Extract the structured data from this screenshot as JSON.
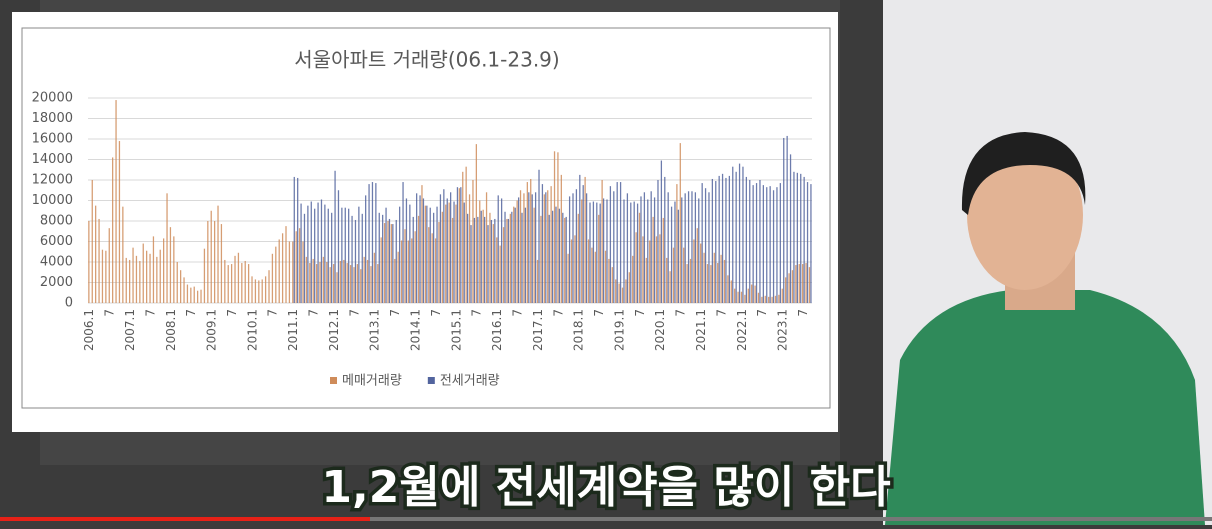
{
  "chart_data": {
    "type": "bar",
    "title": "서울아파트 거래량(06.1-23.9)",
    "categories": [
      "2006.1",
      null,
      null,
      null,
      null,
      null,
      "7",
      null,
      null,
      null,
      null,
      null,
      "2007.1",
      null,
      null,
      null,
      null,
      null,
      "7",
      null,
      null,
      null,
      null,
      null,
      "2008.1",
      null,
      null,
      null,
      null,
      null,
      "7",
      null,
      null,
      null,
      null,
      null,
      "2009.1",
      null,
      null,
      null,
      null,
      null,
      "7",
      null,
      null,
      null,
      null,
      null,
      "2010.1",
      null,
      null,
      null,
      null,
      null,
      "7",
      null,
      null,
      null,
      null,
      null,
      "2011.1",
      null,
      null,
      null,
      null,
      null,
      "7",
      null,
      null,
      null,
      null,
      null,
      "2012.1",
      null,
      null,
      null,
      null,
      null,
      "7",
      null,
      null,
      null,
      null,
      null,
      "2013.1",
      null,
      null,
      null,
      null,
      null,
      "7",
      null,
      null,
      null,
      null,
      null,
      "2014.1",
      null,
      null,
      null,
      null,
      null,
      "7",
      null,
      null,
      null,
      null,
      null,
      "2015.1",
      null,
      null,
      null,
      null,
      null,
      "7",
      null,
      null,
      null,
      null,
      null,
      "2016.1",
      null,
      null,
      null,
      null,
      null,
      "7",
      null,
      null,
      null,
      null,
      null,
      "2017.1",
      null,
      null,
      null,
      null,
      null,
      "7",
      null,
      null,
      null,
      null,
      null,
      "2018.1",
      null,
      null,
      null,
      null,
      null,
      "7",
      null,
      null,
      null,
      null,
      null,
      "2019.1",
      null,
      null,
      null,
      null,
      null,
      "7",
      null,
      null,
      null,
      null,
      null,
      "2020.1",
      null,
      null,
      null,
      null,
      null,
      "7",
      null,
      null,
      null,
      null,
      null,
      "2021.1",
      null,
      null,
      null,
      null,
      null,
      "7",
      null,
      null,
      null,
      null,
      null,
      "2022.1",
      null,
      null,
      null,
      null,
      null,
      "7",
      null,
      null,
      null,
      null,
      null,
      "2023.1",
      null,
      null,
      null,
      null,
      null,
      "7",
      null,
      null
    ],
    "series": [
      {
        "name": "메매거래량",
        "color": "#cf8c5a",
        "values": [
          8000,
          12000,
          9500,
          8200,
          5200,
          5100,
          7300,
          14200,
          19800,
          15800,
          9400,
          4400,
          4200,
          5400,
          4600,
          4100,
          5800,
          5100,
          4800,
          6500,
          4500,
          5200,
          6300,
          10700,
          7400,
          6500,
          4000,
          3200,
          2500,
          1800,
          1500,
          1600,
          1200,
          1300,
          5300,
          8000,
          9000,
          8000,
          9500,
          7700,
          4200,
          3700,
          3800,
          4600,
          4900,
          3900,
          4100,
          3800,
          2600,
          2300,
          2200,
          2300,
          2600,
          3200,
          4800,
          5500,
          6200,
          6800,
          7500,
          6000,
          6000,
          7000,
          7300,
          6000,
          4500,
          3900,
          4300,
          3800,
          4000,
          4500,
          4000,
          3500,
          3800,
          3000,
          4100,
          4200,
          3900,
          3700,
          3500,
          3800,
          3300,
          4500,
          4200,
          3600,
          4900,
          3800,
          6400,
          7800,
          8000,
          7700,
          4300,
          5000,
          6100,
          7200,
          6100,
          6300,
          7000,
          8500,
          11500,
          9500,
          7400,
          6800,
          6300,
          7900,
          8900,
          9600,
          9800,
          8300,
          9600,
          11200,
          12800,
          13300,
          10600,
          12000,
          15500,
          10000,
          9100,
          10800,
          8800,
          7700,
          6400,
          5600,
          7400,
          8200,
          8700,
          9400,
          10000,
          11000,
          10700,
          11800,
          12100,
          9300,
          4200,
          8500,
          10600,
          11000,
          11400,
          14800,
          14700,
          12500,
          8300,
          4800,
          6200,
          6600,
          8700,
          10100,
          12300,
          6200,
          5400,
          5000,
          8600,
          12000,
          5100,
          4300,
          3500,
          2300,
          1900,
          1500,
          2300,
          3000,
          4600,
          6900,
          8800,
          6500,
          4400,
          6100,
          8400,
          6500,
          6700,
          8300,
          4400,
          3100,
          5400,
          11600,
          15600,
          5400,
          3800,
          4300,
          6200,
          7300,
          5800,
          4900,
          3800,
          3700,
          4900,
          3900,
          4700,
          4200,
          2700,
          2200,
          1400,
          1100,
          1100,
          800,
          1400,
          1800,
          1700,
          1000,
          600,
          700,
          600,
          600,
          700,
          800,
          1400,
          2500,
          2900,
          3200,
          3700,
          3800,
          3800,
          3900,
          3500
        ]
      },
      {
        "name": "전세거래량",
        "color": "#52649e",
        "values": [
          null,
          null,
          null,
          null,
          null,
          null,
          null,
          null,
          null,
          null,
          null,
          null,
          null,
          null,
          null,
          null,
          null,
          null,
          null,
          null,
          null,
          null,
          null,
          null,
          null,
          null,
          null,
          null,
          null,
          null,
          null,
          null,
          null,
          null,
          null,
          null,
          null,
          null,
          null,
          null,
          null,
          null,
          null,
          null,
          null,
          null,
          null,
          null,
          null,
          null,
          null,
          null,
          null,
          null,
          null,
          null,
          null,
          null,
          null,
          null,
          12300,
          12200,
          9700,
          8700,
          9500,
          9900,
          9200,
          9800,
          10100,
          9600,
          9200,
          8800,
          12900,
          11000,
          9300,
          9300,
          9200,
          8500,
          8100,
          9400,
          8700,
          10500,
          11600,
          11800,
          11700,
          8800,
          8600,
          9300,
          8200,
          7700,
          8100,
          9400,
          11800,
          10200,
          9600,
          8400,
          10700,
          10500,
          10200,
          9500,
          9300,
          8800,
          9400,
          10600,
          11100,
          10200,
          10800,
          9900,
          11300,
          11300,
          9800,
          8700,
          7600,
          8300,
          8400,
          9000,
          8400,
          7600,
          8100,
          8200,
          10500,
          10200,
          8900,
          8200,
          8900,
          9300,
          10300,
          8800,
          9300,
          10800,
          10600,
          10800,
          13000,
          11600,
          10800,
          8600,
          9000,
          9400,
          9200,
          8800,
          8400,
          10400,
          10700,
          11100,
          12500,
          11500,
          10700,
          9800,
          9900,
          9800,
          9700,
          10200,
          10100,
          11400,
          10900,
          11800,
          11800,
          10100,
          10700,
          9800,
          9900,
          9700,
          10400,
          10800,
          10100,
          10900,
          10300,
          12000,
          13900,
          12300,
          10800,
          9400,
          9900,
          9100,
          10300,
          10700,
          10900,
          10900,
          10800,
          10200,
          11700,
          11200,
          10800,
          12100,
          11900,
          12400,
          12600,
          12200,
          12400,
          13300,
          12800,
          13600,
          13300,
          12300,
          12000,
          11500,
          11700,
          12000,
          11500,
          11300,
          11400,
          11000,
          11300,
          11700,
          16100,
          16300,
          14500,
          12800,
          12700,
          12600,
          12300,
          11800,
          11600
        ]
      }
    ],
    "ylim": [
      0,
      20000
    ],
    "yticks": [
      0,
      2000,
      4000,
      6000,
      8000,
      10000,
      12000,
      14000,
      16000,
      18000,
      20000
    ],
    "grid": true,
    "legend": "bottom"
  },
  "caption": "1,2월에 전세계약을 많이 한다"
}
